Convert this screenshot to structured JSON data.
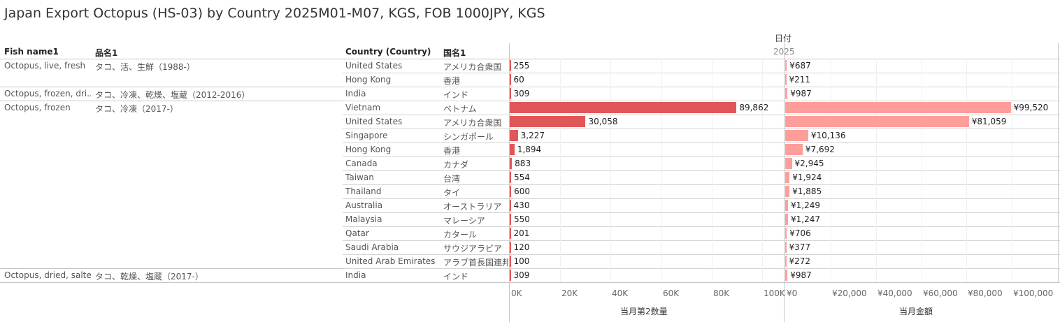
{
  "title": "Japan Export Octopus (HS-03) by Country 2025M01-M07, KGS, FOB 1000JPY, KGS",
  "headers": {
    "fish_name": "Fish name1",
    "hinmei": "品名1",
    "country": "Country (Country)",
    "kokumei": "国名1",
    "date_label": "日付",
    "year": "2025"
  },
  "groups": [
    {
      "fish": "Octopus, live, fresh",
      "hinmei": "タコ、活、生鮮（1988-）",
      "rows": 2
    },
    {
      "fish": "Octopus, frozen, dri..",
      "hinmei": "タコ、冷凍、乾燥、塩蔵（2012-2016）",
      "rows": 1
    },
    {
      "fish": "Octopus, frozen",
      "hinmei": "タコ、冷凍（2017-）",
      "rows": 12
    },
    {
      "fish": "Octopus, dried, salted",
      "hinmei": "タコ、乾燥、塩蔵（2017-）",
      "rows": 1
    }
  ],
  "colors": {
    "quantity": "#e15759",
    "value": "#ff9d9a"
  },
  "chart_data": {
    "type": "bar",
    "orientation": "horizontal",
    "categories": [
      {
        "country": "United States",
        "kokumei": "アメリカ合衆国"
      },
      {
        "country": "Hong Kong",
        "kokumei": "香港"
      },
      {
        "country": "India",
        "kokumei": "インド"
      },
      {
        "country": "Vietnam",
        "kokumei": "ベトナム"
      },
      {
        "country": "United States",
        "kokumei": "アメリカ合衆国"
      },
      {
        "country": "Singapore",
        "kokumei": "シンガポール"
      },
      {
        "country": "Hong Kong",
        "kokumei": "香港"
      },
      {
        "country": "Canada",
        "kokumei": "カナダ"
      },
      {
        "country": "Taiwan",
        "kokumei": "台湾"
      },
      {
        "country": "Thailand",
        "kokumei": "タイ"
      },
      {
        "country": "Australia",
        "kokumei": "オーストラリア"
      },
      {
        "country": "Malaysia",
        "kokumei": "マレーシア"
      },
      {
        "country": "Qatar",
        "kokumei": "カタール"
      },
      {
        "country": "Saudi Arabia",
        "kokumei": "サウジアラビア"
      },
      {
        "country": "United Arab Emirates",
        "kokumei": "アラブ首長国連邦"
      },
      {
        "country": "India",
        "kokumei": "インド"
      }
    ],
    "series": [
      {
        "name": "当月第2数量",
        "values": [
          255,
          60,
          309,
          89862,
          30058,
          3227,
          1894,
          883,
          554,
          600,
          430,
          550,
          201,
          120,
          100,
          309
        ],
        "labels": [
          "255",
          "60",
          "309",
          "89,862",
          "30,058",
          "3,227",
          "1,894",
          "883",
          "554",
          "600",
          "430",
          "550",
          "201",
          "120",
          "100",
          "309"
        ],
        "xlim": [
          0,
          105000
        ],
        "ticks": [
          0,
          20000,
          40000,
          60000,
          80000,
          100000
        ],
        "tick_labels": [
          "0K",
          "20K",
          "40K",
          "60K",
          "80K",
          "100K"
        ]
      },
      {
        "name": "当月金額",
        "values": [
          687,
          211,
          987,
          99520,
          81059,
          10136,
          7692,
          2945,
          1924,
          1885,
          1249,
          1247,
          706,
          377,
          272,
          987
        ],
        "labels": [
          "¥687",
          "¥211",
          "¥987",
          "¥99,520",
          "¥81,059",
          "¥10,136",
          "¥7,692",
          "¥2,945",
          "¥1,924",
          "¥1,885",
          "¥1,249",
          "¥1,247",
          "¥706",
          "¥377",
          "¥272",
          "¥987"
        ],
        "xlim": [
          0,
          120000
        ],
        "ticks": [
          0,
          20000,
          40000,
          60000,
          80000,
          100000
        ],
        "tick_labels": [
          "¥0",
          "¥20,000",
          "¥40,000",
          "¥60,000",
          "¥80,000",
          "¥100,000"
        ]
      }
    ]
  }
}
